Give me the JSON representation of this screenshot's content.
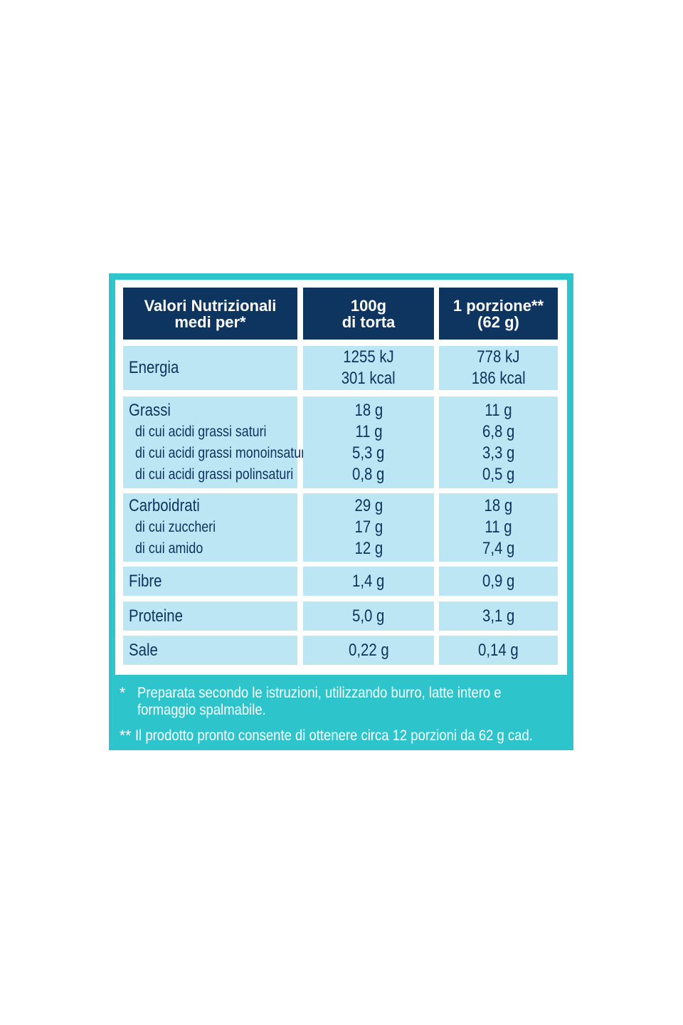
{
  "header": {
    "cells": [
      [
        "Valori Nutrizionali",
        "medi per*"
      ],
      [
        "100g",
        "di torta"
      ],
      [
        "1 porzione**",
        "(62 g)"
      ]
    ]
  },
  "rows": [
    {
      "label": "Energia",
      "sub": [],
      "per100g": [
        "1255 kJ",
        "301 kcal"
      ],
      "perPortion": [
        "778 kJ",
        "186 kcal"
      ]
    },
    {
      "label": "Grassi",
      "sub": [
        "di cui acidi grassi saturi",
        "di cui acidi grassi monoinsaturi",
        "di cui acidi grassi polinsaturi"
      ],
      "per100g": [
        "18 g",
        "11 g",
        "5,3 g",
        "0,8 g"
      ],
      "perPortion": [
        "11 g",
        "6,8 g",
        "3,3 g",
        "0,5 g"
      ]
    },
    {
      "label": "Carboidrati",
      "sub": [
        "di cui zuccheri",
        "di cui amido"
      ],
      "per100g": [
        "29 g",
        "17 g",
        "12 g"
      ],
      "perPortion": [
        "18 g",
        "11 g",
        "7,4 g"
      ]
    },
    {
      "label": "Fibre",
      "sub": [],
      "per100g": [
        "1,4 g"
      ],
      "perPortion": [
        "0,9 g"
      ]
    },
    {
      "label": "Proteine",
      "sub": [],
      "per100g": [
        "5,0 g"
      ],
      "perPortion": [
        "3,1 g"
      ]
    },
    {
      "label": "Sale",
      "sub": [],
      "per100g": [
        "0,22 g"
      ],
      "perPortion": [
        "0,14 g"
      ]
    }
  ],
  "footnotes": [
    {
      "marker": "*",
      "lines": [
        "Preparata secondo le istruzioni, utilizzando burro, latte intero e",
        "formaggio spalmabile."
      ]
    },
    {
      "marker": "**",
      "lines": [
        "Il prodotto pronto consente di ottenere circa 12 porzioni da 62 g cad."
      ]
    }
  ]
}
